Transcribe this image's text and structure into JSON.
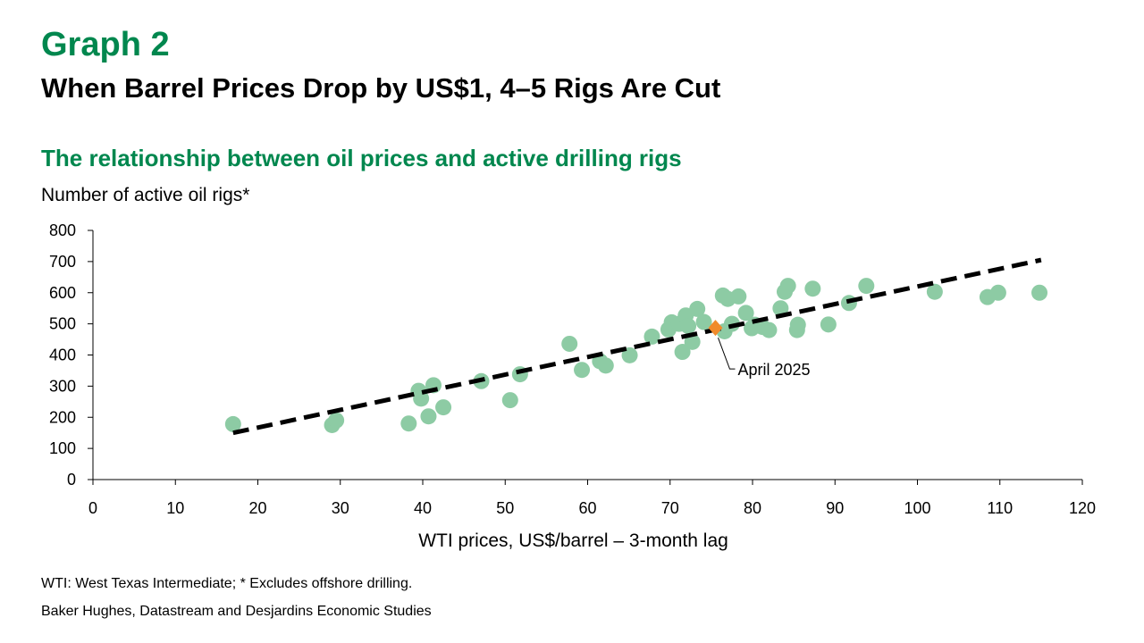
{
  "header": {
    "graph_label": "Graph 2",
    "title": "When Barrel Prices Drop by US$1, 4–5 Rigs Are Cut"
  },
  "colors": {
    "accent_green": "#00874E",
    "point_green": "#8DCBA4",
    "highlight_orange": "#F08A2B",
    "trend_black": "#000000"
  },
  "chart_data": {
    "type": "scatter",
    "title": "The relationship between oil prices and active drilling rigs",
    "ylabel": "Number of active oil rigs*",
    "xlabel": "WTI prices, US$/barrel – 3-month lag",
    "xlim": [
      0,
      120
    ],
    "ylim": [
      0,
      800
    ],
    "xticks": [
      0,
      10,
      20,
      30,
      40,
      50,
      60,
      70,
      80,
      90,
      100,
      110,
      120
    ],
    "yticks": [
      0,
      100,
      200,
      300,
      400,
      500,
      600,
      700,
      800
    ],
    "grid": false,
    "legend": "none",
    "series": [
      {
        "points": [
          [
            17,
            178
          ],
          [
            29,
            175
          ],
          [
            29.5,
            190
          ],
          [
            38.3,
            180
          ],
          [
            39.5,
            285
          ],
          [
            39.8,
            260
          ],
          [
            40.7,
            203
          ],
          [
            41.3,
            303
          ],
          [
            42.5,
            232
          ],
          [
            47.1,
            316
          ],
          [
            50.6,
            255
          ],
          [
            51.8,
            338
          ],
          [
            57.8,
            436
          ],
          [
            59.3,
            352
          ],
          [
            61.5,
            380
          ],
          [
            62.2,
            366
          ],
          [
            65.1,
            399
          ],
          [
            67.8,
            459
          ],
          [
            69.8,
            482
          ],
          [
            70.2,
            505
          ],
          [
            71.1,
            500
          ],
          [
            71.5,
            410
          ],
          [
            71.9,
            527
          ],
          [
            72.2,
            493
          ],
          [
            72.7,
            442
          ],
          [
            73.3,
            548
          ],
          [
            74.1,
            506
          ],
          [
            76.4,
            591
          ],
          [
            76.6,
            476
          ],
          [
            77,
            580
          ],
          [
            77.5,
            500
          ],
          [
            78.3,
            588
          ],
          [
            79.2,
            535
          ],
          [
            79.9,
            486
          ],
          [
            80.3,
            497
          ],
          [
            81.2,
            490
          ],
          [
            82,
            480
          ],
          [
            83.4,
            550
          ],
          [
            83.9,
            603
          ],
          [
            84.3,
            622
          ],
          [
            85.4,
            480
          ],
          [
            85.5,
            497
          ],
          [
            87.3,
            613
          ],
          [
            89.2,
            498
          ],
          [
            91.7,
            567
          ],
          [
            93.8,
            622
          ],
          [
            102.1,
            603
          ],
          [
            108.5,
            586
          ],
          [
            109.8,
            600
          ],
          [
            114.8,
            600
          ]
        ]
      }
    ],
    "highlight": {
      "x": 75.5,
      "y": 487,
      "label": "April 2025"
    },
    "trendline": {
      "x": [
        17,
        115
      ],
      "y": [
        150,
        705
      ]
    }
  },
  "footer": {
    "notes": "WTI: West Texas Intermediate; * Excludes offshore drilling.",
    "source": "Baker Hughes, Datastream and Desjardins Economic Studies"
  }
}
